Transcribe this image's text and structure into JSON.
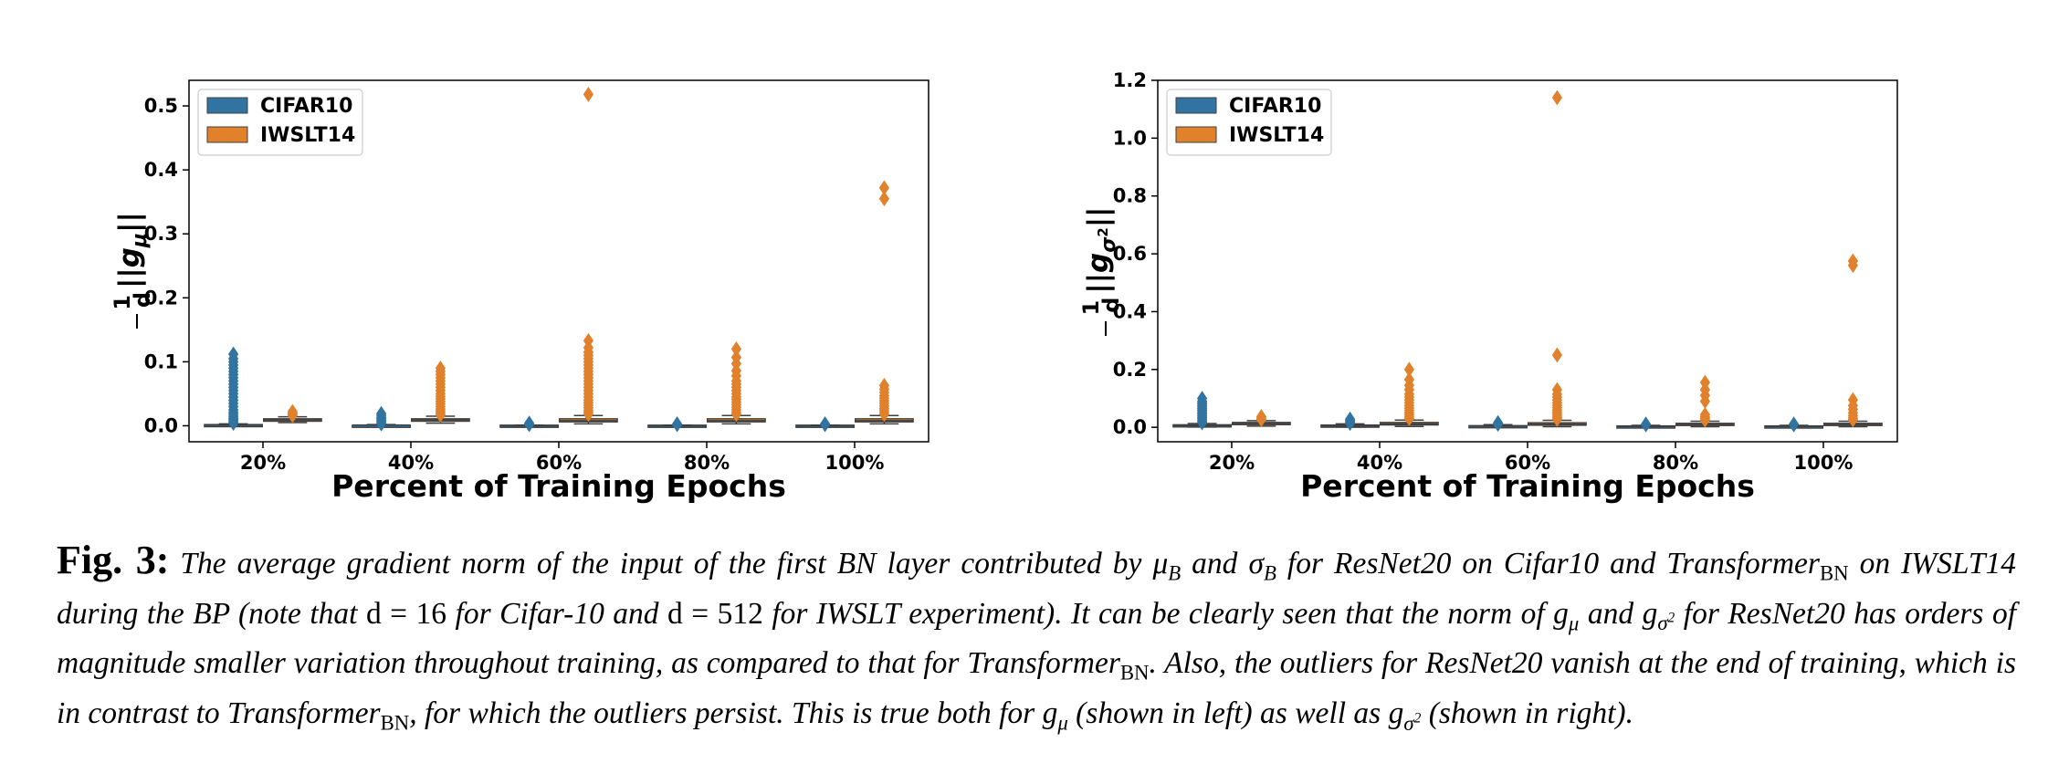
{
  "chart_data": [
    {
      "type": "box",
      "ylabel": "1/d ||g_μ||",
      "xlabel": "Percent of Training Epochs",
      "categories": [
        "20%",
        "40%",
        "60%",
        "80%",
        "100%"
      ],
      "ylim": [
        -0.025,
        0.54
      ],
      "yticks": [
        0.0,
        0.1,
        0.2,
        0.3,
        0.4,
        0.5
      ],
      "ytick_labels": [
        "0.0",
        "0.1",
        "0.2",
        "0.3",
        "0.4",
        "0.5"
      ],
      "legend": {
        "position": "top-left",
        "entries": [
          "CIFAR10",
          "IWSLT14"
        ]
      },
      "series": [
        {
          "name": "CIFAR10",
          "color": "#3274a1",
          "boxes": [
            {
              "category": "20%",
              "q1": 0.0,
              "median": 0.001,
              "q3": 0.002,
              "whisker_low": 0.0,
              "whisker_high": 0.003,
              "outliers": [
                0.004,
                0.006,
                0.008,
                0.01,
                0.012,
                0.015,
                0.018,
                0.021,
                0.025,
                0.03,
                0.035,
                0.04,
                0.045,
                0.05,
                0.055,
                0.06,
                0.065,
                0.07,
                0.075,
                0.08,
                0.085,
                0.09,
                0.095,
                0.1,
                0.105,
                0.112
              ]
            },
            {
              "category": "40%",
              "q1": 0.0,
              "median": 0.001,
              "q3": 0.001,
              "whisker_low": 0.0,
              "whisker_high": 0.002,
              "outliers": [
                0.003,
                0.005,
                0.007,
                0.009,
                0.011,
                0.013,
                0.016,
                0.019
              ]
            },
            {
              "category": "60%",
              "q1": 0.0,
              "median": 0.0,
              "q3": 0.001,
              "whisker_low": 0.0,
              "whisker_high": 0.001,
              "outliers": [
                0.002,
                0.003,
                0.004
              ]
            },
            {
              "category": "80%",
              "q1": 0.0,
              "median": 0.0,
              "q3": 0.001,
              "whisker_low": 0.0,
              "whisker_high": 0.001,
              "outliers": [
                0.002,
                0.003
              ]
            },
            {
              "category": "100%",
              "q1": 0.0,
              "median": 0.0,
              "q3": 0.001,
              "whisker_low": 0.0,
              "whisker_high": 0.001,
              "outliers": [
                0.002,
                0.003
              ]
            }
          ]
        },
        {
          "name": "IWSLT14",
          "color": "#e1812c",
          "boxes": [
            {
              "category": "20%",
              "q1": 0.007,
              "median": 0.009,
              "q3": 0.011,
              "whisker_low": 0.005,
              "whisker_high": 0.014,
              "outliers": [
                0.016,
                0.018,
                0.02,
                0.022
              ]
            },
            {
              "category": "40%",
              "q1": 0.007,
              "median": 0.009,
              "q3": 0.011,
              "whisker_low": 0.004,
              "whisker_high": 0.015,
              "outliers": [
                0.017,
                0.02,
                0.023,
                0.026,
                0.03,
                0.034,
                0.038,
                0.042,
                0.046,
                0.05,
                0.055,
                0.06,
                0.065,
                0.07,
                0.075,
                0.08,
                0.085,
                0.09
              ]
            },
            {
              "category": "60%",
              "q1": 0.006,
              "median": 0.008,
              "q3": 0.011,
              "whisker_low": 0.003,
              "whisker_high": 0.016,
              "outliers": [
                0.018,
                0.021,
                0.024,
                0.028,
                0.032,
                0.036,
                0.04,
                0.045,
                0.05,
                0.055,
                0.06,
                0.065,
                0.07,
                0.075,
                0.08,
                0.085,
                0.09,
                0.095,
                0.1,
                0.105,
                0.11,
                0.115,
                0.122,
                0.133,
                0.518
              ]
            },
            {
              "category": "80%",
              "q1": 0.006,
              "median": 0.008,
              "q3": 0.011,
              "whisker_low": 0.003,
              "whisker_high": 0.016,
              "outliers": [
                0.018,
                0.021,
                0.025,
                0.029,
                0.033,
                0.037,
                0.041,
                0.045,
                0.05,
                0.055,
                0.06,
                0.065,
                0.07,
                0.078,
                0.086,
                0.097,
                0.107,
                0.12
              ]
            },
            {
              "category": "100%",
              "q1": 0.006,
              "median": 0.008,
              "q3": 0.011,
              "whisker_low": 0.003,
              "whisker_high": 0.016,
              "outliers": [
                0.018,
                0.021,
                0.024,
                0.027,
                0.031,
                0.035,
                0.039,
                0.043,
                0.047,
                0.052,
                0.057,
                0.063,
                0.355,
                0.372
              ]
            }
          ]
        }
      ]
    },
    {
      "type": "box",
      "ylabel": "1/d ||g_σ²||",
      "xlabel": "Percent of Training Epochs",
      "categories": [
        "20%",
        "40%",
        "60%",
        "80%",
        "100%"
      ],
      "ylim": [
        -0.05,
        1.2
      ],
      "yticks": [
        0.0,
        0.2,
        0.4,
        0.6,
        0.8,
        1.0,
        1.2
      ],
      "ytick_labels": [
        "0.0",
        "0.2",
        "0.4",
        "0.6",
        "0.8",
        "1.0",
        "1.2"
      ],
      "legend": {
        "position": "top-left",
        "entries": [
          "CIFAR10",
          "IWSLT14"
        ]
      },
      "series": [
        {
          "name": "CIFAR10",
          "color": "#3274a1",
          "boxes": [
            {
              "category": "20%",
              "q1": 0.003,
              "median": 0.006,
              "q3": 0.009,
              "whisker_low": 0.001,
              "whisker_high": 0.013,
              "outliers": [
                0.016,
                0.02,
                0.025,
                0.03,
                0.035,
                0.04,
                0.045,
                0.05,
                0.055,
                0.06,
                0.065,
                0.07,
                0.075,
                0.08,
                0.085,
                0.09,
                0.1
              ]
            },
            {
              "category": "40%",
              "q1": 0.003,
              "median": 0.005,
              "q3": 0.008,
              "whisker_low": 0.001,
              "whisker_high": 0.012,
              "outliers": [
                0.014,
                0.017,
                0.02,
                0.024,
                0.028
              ]
            },
            {
              "category": "60%",
              "q1": 0.002,
              "median": 0.004,
              "q3": 0.006,
              "whisker_low": 0.001,
              "whisker_high": 0.009,
              "outliers": [
                0.011,
                0.013,
                0.016
              ]
            },
            {
              "category": "80%",
              "q1": 0.001,
              "median": 0.003,
              "q3": 0.005,
              "whisker_low": 0.0,
              "whisker_high": 0.007,
              "outliers": [
                0.009,
                0.011
              ]
            },
            {
              "category": "100%",
              "q1": 0.001,
              "median": 0.003,
              "q3": 0.005,
              "whisker_low": 0.0,
              "whisker_high": 0.007,
              "outliers": [
                0.009,
                0.011
              ]
            }
          ]
        },
        {
          "name": "IWSLT14",
          "color": "#e1812c",
          "boxes": [
            {
              "category": "20%",
              "q1": 0.009,
              "median": 0.013,
              "q3": 0.017,
              "whisker_low": 0.004,
              "whisker_high": 0.023,
              "outliers": [
                0.027,
                0.032,
                0.037
              ]
            },
            {
              "category": "40%",
              "q1": 0.008,
              "median": 0.012,
              "q3": 0.017,
              "whisker_low": 0.003,
              "whisker_high": 0.025,
              "outliers": [
                0.03,
                0.036,
                0.043,
                0.05,
                0.058,
                0.066,
                0.075,
                0.085,
                0.095,
                0.105,
                0.115,
                0.13,
                0.145,
                0.165,
                0.2
              ]
            },
            {
              "category": "60%",
              "q1": 0.007,
              "median": 0.011,
              "q3": 0.016,
              "whisker_low": 0.002,
              "whisker_high": 0.024,
              "outliers": [
                0.028,
                0.033,
                0.039,
                0.046,
                0.053,
                0.06,
                0.068,
                0.076,
                0.085,
                0.095,
                0.105,
                0.115,
                0.13,
                0.25,
                1.14
              ]
            },
            {
              "category": "80%",
              "q1": 0.006,
              "median": 0.01,
              "q3": 0.014,
              "whisker_low": 0.002,
              "whisker_high": 0.021,
              "outliers": [
                0.025,
                0.03,
                0.036,
                0.044,
                0.09,
                0.11,
                0.13,
                0.155
              ]
            },
            {
              "category": "100%",
              "q1": 0.006,
              "median": 0.01,
              "q3": 0.014,
              "whisker_low": 0.002,
              "whisker_high": 0.021,
              "outliers": [
                0.026,
                0.032,
                0.04,
                0.05,
                0.062,
                0.075,
                0.095,
                0.56,
                0.575
              ]
            }
          ]
        }
      ]
    }
  ],
  "caption": {
    "label": "Fig. 3:",
    "l1a": "The average gradient norm of the input of the first BN layer contributed by ",
    "mu": "μ",
    "sub_b": "B",
    "and": " and ",
    "sigma": "σ",
    "l1b": " for ResNet20 on Cifar10 and Transformer",
    "bn": "BN",
    "l2a": " on IWSLT14 during the BP (note that ",
    "d": "d",
    "eq16": " = 16",
    "l2b": " for Cifar-10 and ",
    "eq512": " = 512",
    "l2c": " for IWSLT experiment). It can be clearly seen that the norm of ",
    "g": "g",
    "l3a": " and ",
    "sigma2": "σ",
    "two": "2",
    "l3b": " for ResNet20 has orders of magnitude smaller variation throughout training, as compared to that for Transformer",
    "l3c": ". Also, the outliers for ResNet20 vanish at the end of training, which is in contrast to Transformer",
    "l4a": ", for which the outliers persist. This is true both for ",
    "l5a": " (shown in left) as well as ",
    "l5b": " (shown in right)."
  }
}
